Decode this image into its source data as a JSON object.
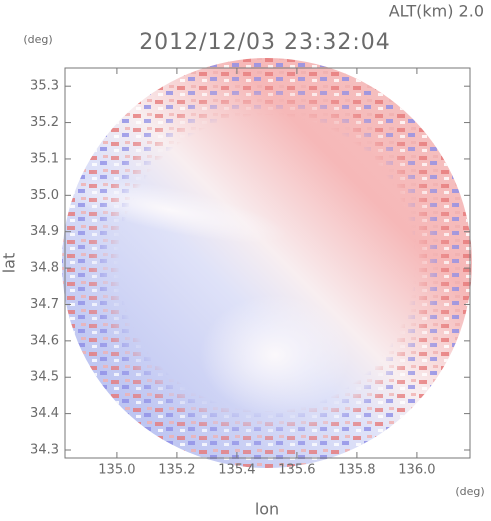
{
  "chart_data": {
    "type": "map",
    "altitude": "ALT(km) 2.0",
    "title": "2012/12/03 23:32:04",
    "x_label": "lon",
    "y_label": "lat",
    "x_unit": "(deg)",
    "y_unit": "(deg)",
    "xlim": [
      134.827,
      136.177
    ],
    "ylim": [
      34.278,
      35.35
    ],
    "xticks": [
      {
        "value": 135,
        "label": "135.0"
      },
      135.2,
      135.4,
      135.6,
      135.8,
      {
        "value": 136,
        "label": "136.0"
      }
    ],
    "yticks": [
      34.3,
      34.4,
      34.5,
      34.6,
      34.7,
      34.8,
      34.9,
      {
        "value": 35,
        "label": "35.0"
      },
      35.1,
      35.2,
      35.3
    ],
    "grid": false
  }
}
